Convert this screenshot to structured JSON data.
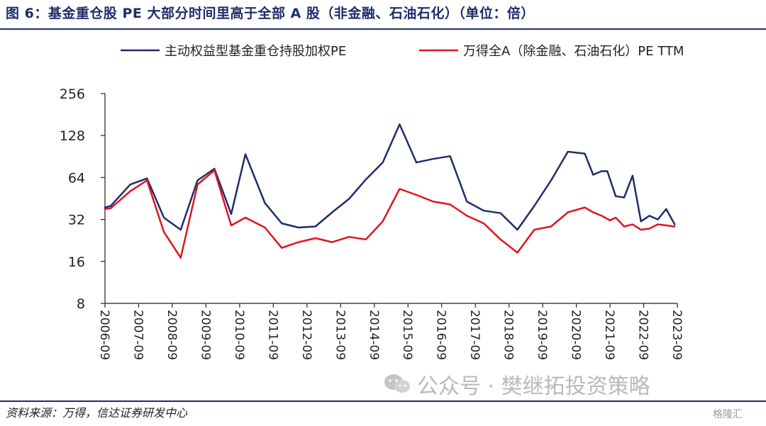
{
  "title": "图 6：基金重仓股 PE 大部分时间里高于全部 A 股（非金融、石油石化）（单位：倍）",
  "source": "资料来源：万得，信达证券研发中心",
  "watermark": "公众号 · 樊继拓投资策略",
  "corner_logo": "格隆汇",
  "colors": {
    "blue": "#1f2d6b",
    "red": "#e0141e",
    "axis": "#222222"
  },
  "chart_data": {
    "type": "line",
    "title": "",
    "xlabel": "",
    "ylabel": "",
    "y_scale": "log2",
    "ylim": [
      8,
      256
    ],
    "y_ticks": [
      8,
      16,
      32,
      64,
      128,
      256
    ],
    "x_tick_labels": [
      "2006-09",
      "2007-09",
      "2008-09",
      "2009-09",
      "2010-09",
      "2011-09",
      "2012-09",
      "2013-09",
      "2014-09",
      "2015-09",
      "2016-09",
      "2017-09",
      "2018-09",
      "2019-09",
      "2020-09",
      "2021-09",
      "2022-09",
      "2023-09"
    ],
    "xlim": [
      2006.75,
      2023.75
    ],
    "legend_position": "top",
    "grid": false,
    "series": [
      {
        "name": "主动权益型基金重仓持股加权PE",
        "color": "#1f2d6b",
        "points": [
          [
            2006.75,
            39
          ],
          [
            2006.92,
            40
          ],
          [
            2007.5,
            57
          ],
          [
            2008.0,
            63
          ],
          [
            2008.5,
            33
          ],
          [
            2009.0,
            27
          ],
          [
            2009.5,
            61
          ],
          [
            2010.0,
            74
          ],
          [
            2010.5,
            35
          ],
          [
            2010.92,
            94
          ],
          [
            2011.5,
            42
          ],
          [
            2012.0,
            30
          ],
          [
            2012.5,
            28
          ],
          [
            2013.0,
            28.5
          ],
          [
            2013.5,
            36
          ],
          [
            2014.0,
            45
          ],
          [
            2014.5,
            62
          ],
          [
            2015.0,
            82
          ],
          [
            2015.5,
            154
          ],
          [
            2016.0,
            82
          ],
          [
            2016.5,
            87
          ],
          [
            2017.0,
            91
          ],
          [
            2017.5,
            43
          ],
          [
            2018.0,
            37
          ],
          [
            2018.5,
            35.5
          ],
          [
            2019.0,
            27
          ],
          [
            2019.5,
            40
          ],
          [
            2020.0,
            61
          ],
          [
            2020.5,
            98
          ],
          [
            2021.0,
            95
          ],
          [
            2021.25,
            67
          ],
          [
            2021.5,
            71
          ],
          [
            2021.67,
            71
          ],
          [
            2021.92,
            47
          ],
          [
            2022.17,
            46
          ],
          [
            2022.42,
            66
          ],
          [
            2022.67,
            31
          ],
          [
            2022.92,
            34
          ],
          [
            2023.17,
            32
          ],
          [
            2023.42,
            38
          ],
          [
            2023.67,
            29.5
          ]
        ]
      },
      {
        "name": "万得全A（除金融、石油石化）PE TTM",
        "color": "#e0141e",
        "points": [
          [
            2006.75,
            38
          ],
          [
            2006.92,
            38.5
          ],
          [
            2007.5,
            51
          ],
          [
            2008.0,
            61
          ],
          [
            2008.5,
            26
          ],
          [
            2009.0,
            17
          ],
          [
            2009.5,
            57
          ],
          [
            2010.0,
            72
          ],
          [
            2010.5,
            29
          ],
          [
            2010.92,
            33
          ],
          [
            2011.5,
            28
          ],
          [
            2012.0,
            20
          ],
          [
            2012.5,
            22
          ],
          [
            2013.0,
            23.5
          ],
          [
            2013.5,
            22
          ],
          [
            2014.0,
            24
          ],
          [
            2014.5,
            23
          ],
          [
            2015.0,
            31
          ],
          [
            2015.5,
            53
          ],
          [
            2016.0,
            48
          ],
          [
            2016.5,
            43
          ],
          [
            2017.0,
            41
          ],
          [
            2017.5,
            34
          ],
          [
            2018.0,
            30
          ],
          [
            2018.5,
            23
          ],
          [
            2019.0,
            18.5
          ],
          [
            2019.5,
            27
          ],
          [
            2020.0,
            28.5
          ],
          [
            2020.5,
            36
          ],
          [
            2021.0,
            39
          ],
          [
            2021.25,
            36
          ],
          [
            2021.5,
            34
          ],
          [
            2021.75,
            31.5
          ],
          [
            2021.92,
            33
          ],
          [
            2022.17,
            28.5
          ],
          [
            2022.42,
            29.5
          ],
          [
            2022.67,
            27
          ],
          [
            2022.92,
            27.5
          ],
          [
            2023.17,
            29.5
          ],
          [
            2023.42,
            29
          ],
          [
            2023.67,
            28.5
          ]
        ]
      }
    ]
  }
}
